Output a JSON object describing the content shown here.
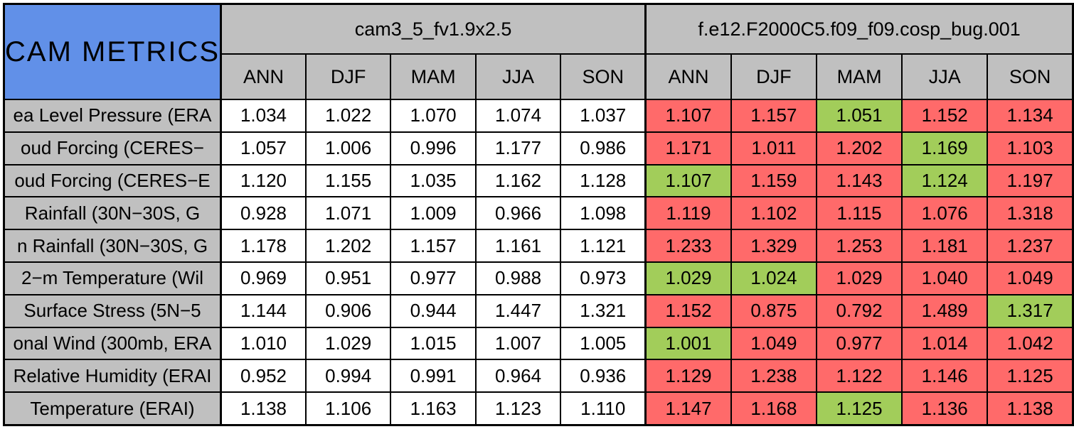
{
  "chart_data": {
    "type": "table",
    "title": "CAM METRICS",
    "column_groups": [
      {
        "name": "cam3_5_fv1.9x2.5",
        "seasons": [
          "ANN",
          "DJF",
          "MAM",
          "JJA",
          "SON"
        ]
      },
      {
        "name": "f.e12.F2000C5.f09_f09.cosp_bug.001",
        "seasons": [
          "ANN",
          "DJF",
          "MAM",
          "JJA",
          "SON"
        ]
      }
    ],
    "status_meaning": {
      "worse": "red cell",
      "better": "green cell",
      "neutral": "white cell"
    },
    "rows": [
      {
        "label": "ea Level Pressure (ERA",
        "model1": [
          "1.034",
          "1.022",
          "1.070",
          "1.074",
          "1.037"
        ],
        "model2": [
          {
            "value": "1.107",
            "status": "worse"
          },
          {
            "value": "1.157",
            "status": "worse"
          },
          {
            "value": "1.051",
            "status": "better"
          },
          {
            "value": "1.152",
            "status": "worse"
          },
          {
            "value": "1.134",
            "status": "worse"
          }
        ]
      },
      {
        "label": "oud Forcing (CERES−",
        "model1": [
          "1.057",
          "1.006",
          "0.996",
          "1.177",
          "0.986"
        ],
        "model2": [
          {
            "value": "1.171",
            "status": "worse"
          },
          {
            "value": "1.011",
            "status": "worse"
          },
          {
            "value": "1.202",
            "status": "worse"
          },
          {
            "value": "1.169",
            "status": "better"
          },
          {
            "value": "1.103",
            "status": "worse"
          }
        ]
      },
      {
        "label": "oud Forcing (CERES−E",
        "model1": [
          "1.120",
          "1.155",
          "1.035",
          "1.162",
          "1.128"
        ],
        "model2": [
          {
            "value": "1.107",
            "status": "better"
          },
          {
            "value": "1.159",
            "status": "worse"
          },
          {
            "value": "1.143",
            "status": "worse"
          },
          {
            "value": "1.124",
            "status": "better"
          },
          {
            "value": "1.197",
            "status": "worse"
          }
        ]
      },
      {
        "label": "Rainfall (30N−30S, G",
        "model1": [
          "0.928",
          "1.071",
          "1.009",
          "0.966",
          "1.098"
        ],
        "model2": [
          {
            "value": "1.119",
            "status": "worse"
          },
          {
            "value": "1.102",
            "status": "worse"
          },
          {
            "value": "1.115",
            "status": "worse"
          },
          {
            "value": "1.076",
            "status": "worse"
          },
          {
            "value": "1.318",
            "status": "worse"
          }
        ]
      },
      {
        "label": "n Rainfall (30N−30S, G",
        "model1": [
          "1.178",
          "1.202",
          "1.157",
          "1.161",
          "1.121"
        ],
        "model2": [
          {
            "value": "1.233",
            "status": "worse"
          },
          {
            "value": "1.329",
            "status": "worse"
          },
          {
            "value": "1.253",
            "status": "worse"
          },
          {
            "value": "1.181",
            "status": "worse"
          },
          {
            "value": "1.237",
            "status": "worse"
          }
        ]
      },
      {
        "label": "2−m Temperature (Wil",
        "model1": [
          "0.969",
          "0.951",
          "0.977",
          "0.988",
          "0.973"
        ],
        "model2": [
          {
            "value": "1.029",
            "status": "better"
          },
          {
            "value": "1.024",
            "status": "better"
          },
          {
            "value": "1.029",
            "status": "worse"
          },
          {
            "value": "1.040",
            "status": "worse"
          },
          {
            "value": "1.049",
            "status": "worse"
          }
        ]
      },
      {
        "label": "Surface Stress (5N−5",
        "model1": [
          "1.144",
          "0.906",
          "0.944",
          "1.447",
          "1.321"
        ],
        "model2": [
          {
            "value": "1.152",
            "status": "worse"
          },
          {
            "value": "0.875",
            "status": "worse"
          },
          {
            "value": "0.792",
            "status": "worse"
          },
          {
            "value": "1.489",
            "status": "worse"
          },
          {
            "value": "1.317",
            "status": "better"
          }
        ]
      },
      {
        "label": "onal Wind (300mb, ERA",
        "model1": [
          "1.010",
          "1.029",
          "1.015",
          "1.007",
          "1.005"
        ],
        "model2": [
          {
            "value": "1.001",
            "status": "better"
          },
          {
            "value": "1.049",
            "status": "worse"
          },
          {
            "value": "0.977",
            "status": "worse"
          },
          {
            "value": "1.014",
            "status": "worse"
          },
          {
            "value": "1.042",
            "status": "worse"
          }
        ]
      },
      {
        "label": "Relative Humidity (ERAI",
        "model1": [
          "0.952",
          "0.994",
          "0.991",
          "0.964",
          "0.936"
        ],
        "model2": [
          {
            "value": "1.129",
            "status": "worse"
          },
          {
            "value": "1.238",
            "status": "worse"
          },
          {
            "value": "1.122",
            "status": "worse"
          },
          {
            "value": "1.146",
            "status": "worse"
          },
          {
            "value": "1.125",
            "status": "worse"
          }
        ]
      },
      {
        "label": "Temperature (ERAI)",
        "model1": [
          "1.138",
          "1.106",
          "1.163",
          "1.123",
          "1.110"
        ],
        "model2": [
          {
            "value": "1.147",
            "status": "worse"
          },
          {
            "value": "1.168",
            "status": "worse"
          },
          {
            "value": "1.125",
            "status": "better"
          },
          {
            "value": "1.136",
            "status": "worse"
          },
          {
            "value": "1.138",
            "status": "worse"
          }
        ]
      }
    ],
    "colors": {
      "title_bg": "#6190e8",
      "header_bg": "#c0c0c0",
      "worse_bg": "#ff6a6a",
      "better_bg": "#a2cd5a",
      "neutral_bg": "#ffffff",
      "border": "#000000"
    }
  }
}
